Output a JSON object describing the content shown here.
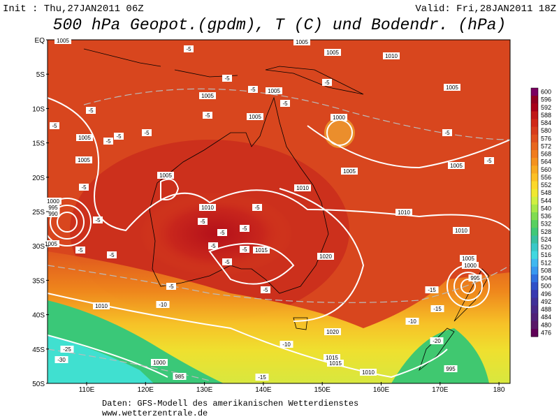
{
  "header": {
    "init": "Init : Thu,27JAN2011 06Z",
    "valid": "Valid: Fri,28JAN2011 18Z",
    "title": "500 hPa Geopot.(gpdm), T (C) und Bodendr. (hPa)"
  },
  "map": {
    "lat_labels": [
      "EQ",
      "5S",
      "10S",
      "15S",
      "20S",
      "25S",
      "30S",
      "35S",
      "40S",
      "45S",
      "50S"
    ],
    "lon_labels": [
      "110E",
      "120E",
      "130E",
      "140E",
      "150E",
      "160E",
      "170E",
      "180"
    ],
    "isobar_labels": [
      "1005",
      "1005",
      "1005",
      "1005",
      "1005",
      "1005",
      "1005",
      "1005",
      "1005",
      "1005",
      "1005",
      "1010",
      "1010",
      "1010",
      "1010",
      "1010",
      "1010",
      "1015",
      "1015",
      "1020",
      "1020",
      "1000",
      "1000",
      "1000",
      "995",
      "990",
      "985",
      "1005",
      "1000",
      "995",
      "1005",
      "1005",
      "1010",
      "1015",
      "995"
    ],
    "temp_labels": [
      "-5",
      "-5",
      "-5",
      "-5",
      "-5",
      "-5",
      "-5",
      "-5",
      "-5",
      "-5",
      "-5",
      "-5",
      "-5",
      "-5",
      "-5",
      "-5",
      "-5",
      "-5",
      "-5",
      "-5",
      "-5",
      "-5",
      "-5",
      "-5",
      "-5",
      "-5",
      "-10",
      "-10",
      "-15",
      "-15",
      "-10",
      "-25",
      "-30",
      "-15",
      "-20"
    ]
  },
  "colorbar": {
    "labels": [
      600,
      596,
      592,
      588,
      584,
      580,
      576,
      572,
      568,
      564,
      560,
      556,
      552,
      548,
      544,
      540,
      536,
      532,
      528,
      524,
      520,
      516,
      512,
      508,
      504,
      500,
      496,
      492,
      488,
      484,
      480,
      476
    ]
  },
  "footer": {
    "source": "Daten: GFS-Modell des amerikanischen Wetterdienstes",
    "site": "www.wetterzentrale.de"
  }
}
